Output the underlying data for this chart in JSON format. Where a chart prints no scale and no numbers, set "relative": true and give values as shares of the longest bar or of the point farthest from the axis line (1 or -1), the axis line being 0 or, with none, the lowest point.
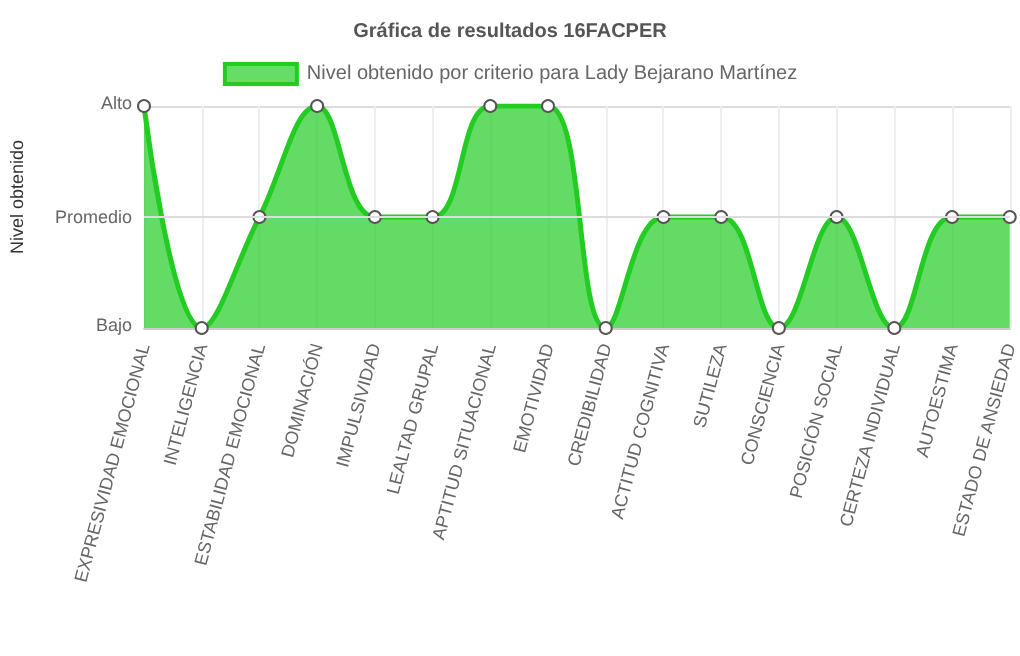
{
  "chart_data": {
    "type": "area",
    "title": "Gráfica de resultados 16FACPER",
    "ylabel": "Nivel obtenido",
    "categories": [
      "EXPRESIVIDAD EMOCIONAL",
      "INTELIGENCIA",
      "ESTABILIDAD EMOCIONAL",
      "DOMINACIÓN",
      "IMPULSIVIDAD",
      "LEALTAD GRUPAL",
      "APTITUD SITUACIONAL",
      "EMOTIVIDAD",
      "CREDIBILIDAD",
      "ACTITUD COGNITIVA",
      "SUTILEZA",
      "CONSCIENCIA",
      "POSICIÓN SOCIAL",
      "CERTEZA INDIVIDUAL",
      "AUTOESTIMA",
      "ESTADO DE ANSIEDAD"
    ],
    "series": [
      {
        "name": "Nivel obtenido por criterio para Lady Bejarano Martínez",
        "color": "#22cc22",
        "values": [
          1,
          0,
          0.5,
          1,
          0.5,
          0.5,
          1,
          1,
          0,
          0.5,
          0.5,
          0,
          0.5,
          0,
          0.5,
          0.5
        ]
      }
    ],
    "relative": true,
    "annotations": [
      "Alto",
      "Bajo"
    ],
    "ref_lines": [
      {
        "axis": "y",
        "value": 0.5,
        "label": "Promedio",
        "color": "#dddddd"
      }
    ],
    "grid": true,
    "legend": "top",
    "marker": "circle",
    "line_style": "solid"
  }
}
